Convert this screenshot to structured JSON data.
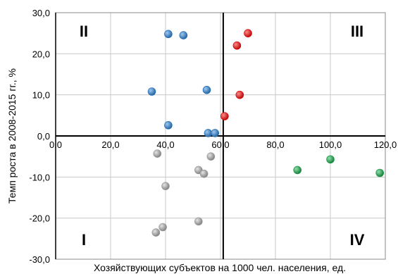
{
  "chart_data": {
    "type": "scatter",
    "xlabel": "Хозяйствующих субъектов на 1000 чел. населения, ед.",
    "ylabel": "Темп роста в 2008-2015 гг., %",
    "xlim": [
      0,
      120
    ],
    "ylim": [
      -30,
      30
    ],
    "x_ticks": [
      "0,0",
      "20,0",
      "40,0",
      "60,0",
      "80,0",
      "100,0",
      "120,0"
    ],
    "y_ticks": [
      "30,0",
      "20,0",
      "10,0",
      "0,0",
      "-10,0",
      "-20,0",
      "-30,0"
    ],
    "grid": true,
    "quadrant_divider_x": 61,
    "quadrants": [
      {
        "label": "II",
        "pos": "top-left"
      },
      {
        "label": "III",
        "pos": "top-right"
      },
      {
        "label": "I",
        "pos": "bottom-left"
      },
      {
        "label": "IV",
        "pos": "bottom-right"
      }
    ],
    "series": [
      {
        "color": "#1f6fb5",
        "points": [
          [
            41,
            24.8
          ],
          [
            46.5,
            24.5
          ],
          [
            35,
            10.8
          ],
          [
            55,
            11.2
          ],
          [
            41,
            2.6
          ],
          [
            55.5,
            0.7
          ],
          [
            58,
            0.7
          ]
        ]
      },
      {
        "color": "#e00000",
        "points": [
          [
            70,
            25
          ],
          [
            66,
            22
          ],
          [
            67,
            10
          ],
          [
            61.5,
            4.8
          ]
        ]
      },
      {
        "color": "#1a9a4a",
        "points": [
          [
            88,
            -8.3
          ],
          [
            100,
            -5.7
          ],
          [
            118,
            -9
          ]
        ]
      },
      {
        "color": "#9a9a9a",
        "points": [
          [
            37,
            -4.3
          ],
          [
            56.5,
            -5
          ],
          [
            52,
            -8.3
          ],
          [
            54,
            -9.2
          ],
          [
            40,
            -12.2
          ],
          [
            52,
            -20.8
          ],
          [
            39,
            -22.2
          ],
          [
            36.5,
            -23.5
          ]
        ]
      }
    ]
  }
}
